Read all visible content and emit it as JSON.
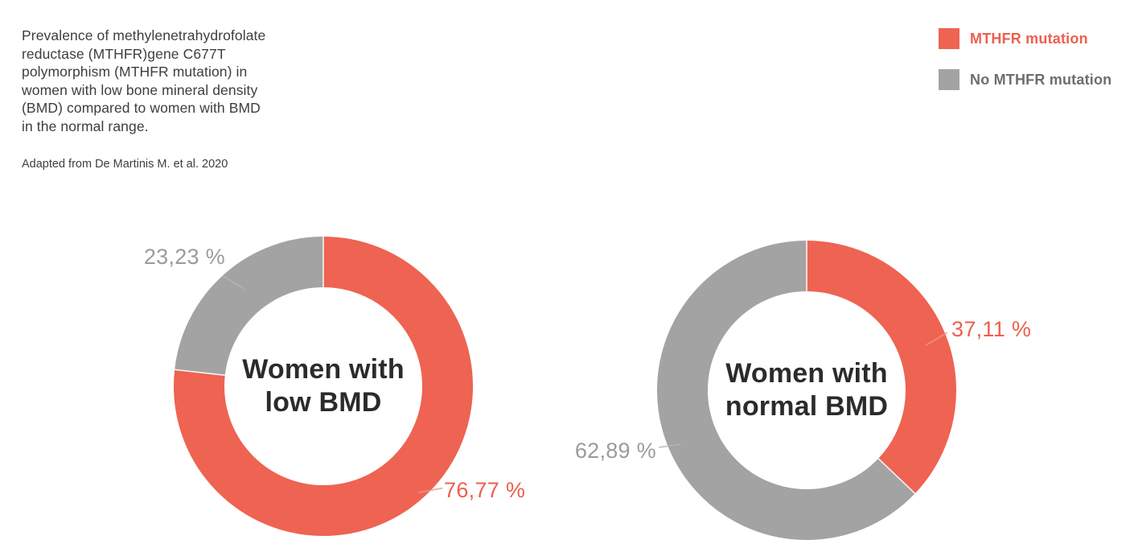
{
  "header": {
    "title": "Prevalence of methylenetrahydrofolate\nreductase (MTHFR)gene C677T\npolymorphism (MTHFR mutation) in\nwomen with low bone mineral density\n(BMD) compared to women with BMD\nin the normal range.",
    "source": "Adapted from De Martinis M. et al. 2020"
  },
  "legend": {
    "items": [
      {
        "label": "MTHFR mutation",
        "color": "#ee6352",
        "text_color": "#ee5f4d"
      },
      {
        "label": "No MTHFR mutation",
        "color": "#a3a3a3",
        "text_color": "#6e6e6e"
      }
    ]
  },
  "chart_data": [
    {
      "type": "pie",
      "variant": "donut",
      "center_label": "Women with\nlow BMD",
      "start_angle_deg": 0,
      "direction": "clockwise",
      "slices": [
        {
          "label": "MTHFR mutation",
          "value": 76.77,
          "display": "76,77 %",
          "color": "#ee6352"
        },
        {
          "label": "No MTHFR mutation",
          "value": 23.23,
          "display": "23,23 %",
          "color": "#a3a3a3"
        }
      ]
    },
    {
      "type": "pie",
      "variant": "donut",
      "center_label": "Women with\nnormal BMD",
      "start_angle_deg": 0,
      "direction": "clockwise",
      "slices": [
        {
          "label": "MTHFR mutation",
          "value": 37.11,
          "display": "37,11 %",
          "color": "#ee6352"
        },
        {
          "label": "No MTHFR mutation",
          "value": 62.89,
          "display": "62,89 %",
          "color": "#a3a3a3"
        }
      ]
    }
  ],
  "colors": {
    "mutation_red": "#ee6352",
    "no_mutation_gray": "#a3a3a3",
    "title_text": "#3e3e3e",
    "center_text": "#2b2b2b",
    "percent_gray": "#9b9b9b",
    "percent_red": "#ee5f4d",
    "leader_gray": "#b5b5b5",
    "leader_red": "#f0948a"
  }
}
